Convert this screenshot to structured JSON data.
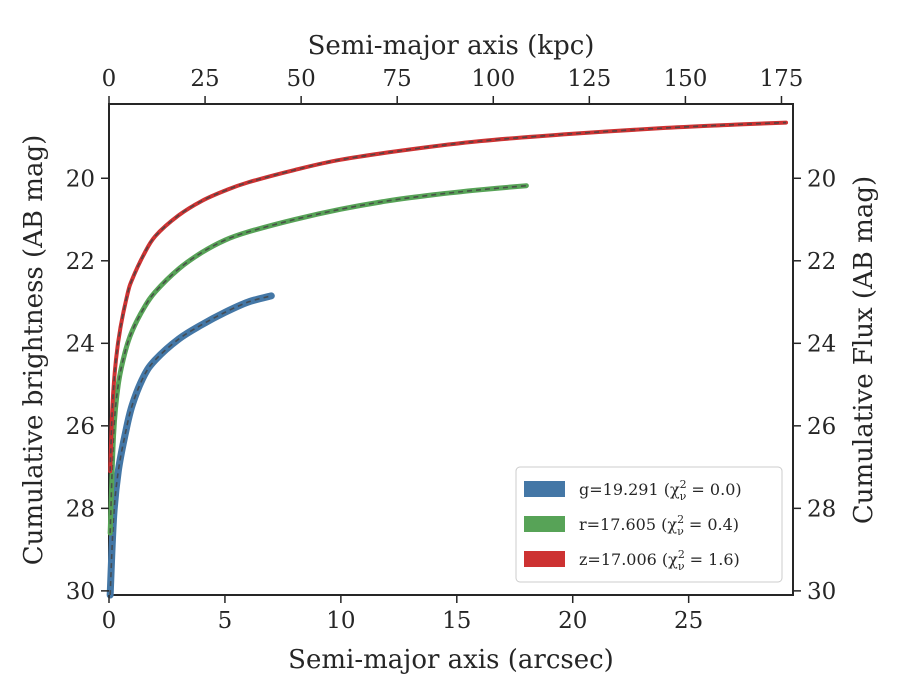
{
  "chart_data": {
    "type": "line",
    "title": "",
    "xlabel": "Semi-major axis (arcsec)",
    "xlabel_top": "Semi-major axis (kpc)",
    "ylabel": "Cumulative brightness (AB mag)",
    "ylabel_right": "Cumulative Flux (AB mag)",
    "xlim": [
      0,
      29.5
    ],
    "xlim_top": [
      0,
      178
    ],
    "ylim": [
      30.1,
      18.2
    ],
    "y_inverted": true,
    "x_ticks": [
      0,
      5,
      10,
      15,
      20,
      25
    ],
    "x_tick_labels": [
      "0",
      "5",
      "10",
      "15",
      "20",
      "25"
    ],
    "x_top_ticks": [
      0,
      25,
      50,
      75,
      100,
      125,
      150,
      175
    ],
    "x_top_tick_labels": [
      "0",
      "25",
      "50",
      "75",
      "100",
      "125",
      "150",
      "175"
    ],
    "y_ticks": [
      20,
      22,
      24,
      26,
      28,
      30
    ],
    "y_tick_labels": [
      "20",
      "22",
      "24",
      "26",
      "28",
      "30"
    ],
    "grid": false,
    "legend_position": "bottom-right",
    "series": [
      {
        "name": "g=19.291 (χ²ν = 0.0)",
        "legend_prefix": "g=19.291 (",
        "legend_math_sub": "ν",
        "legend_math_sup": "2",
        "legend_suffix": " = 0.0)",
        "color": "#4477a6",
        "x": [
          0.05,
          0.2,
          0.4,
          0.7,
          1.0,
          1.5,
          2.0,
          3.0,
          4.0,
          5.0,
          6.0,
          7.0
        ],
        "y": [
          30.1,
          28.2,
          27.1,
          26.2,
          25.5,
          24.8,
          24.4,
          23.9,
          23.55,
          23.25,
          23.0,
          22.85
        ]
      },
      {
        "name": "r=17.605 (χ²ν = 0.4)",
        "legend_prefix": "r=17.605 (",
        "legend_math_sub": "ν",
        "legend_math_sup": "2",
        "legend_suffix": " = 0.4)",
        "color": "#57a357",
        "x": [
          0.05,
          0.2,
          0.4,
          0.7,
          1.0,
          1.5,
          2.0,
          3.0,
          4.0,
          5.0,
          6.0,
          8.0,
          10.0,
          12.0,
          14.0,
          16.0,
          18.0
        ],
        "y": [
          28.6,
          26.2,
          25.0,
          24.2,
          23.7,
          23.15,
          22.75,
          22.2,
          21.8,
          21.5,
          21.3,
          21.0,
          20.75,
          20.55,
          20.4,
          20.28,
          20.18
        ]
      },
      {
        "name": "z=17.006 (χ²ν = 1.6)",
        "legend_prefix": "z=17.006 (",
        "legend_math_sub": "ν",
        "legend_math_sup": "2",
        "legend_suffix": " = 1.6)",
        "color": "#cd3232",
        "x": [
          0.05,
          0.15,
          0.3,
          0.5,
          0.8,
          1.0,
          1.5,
          2.0,
          3.0,
          4.0,
          5.0,
          6.0,
          8.0,
          10.0,
          13.0,
          16.0,
          20.0,
          24.0,
          27.0,
          29.2
        ],
        "y": [
          27.1,
          25.5,
          24.4,
          23.6,
          22.8,
          22.45,
          21.85,
          21.4,
          20.9,
          20.55,
          20.3,
          20.1,
          19.8,
          19.55,
          19.3,
          19.1,
          18.92,
          18.78,
          18.7,
          18.65
        ]
      }
    ]
  }
}
